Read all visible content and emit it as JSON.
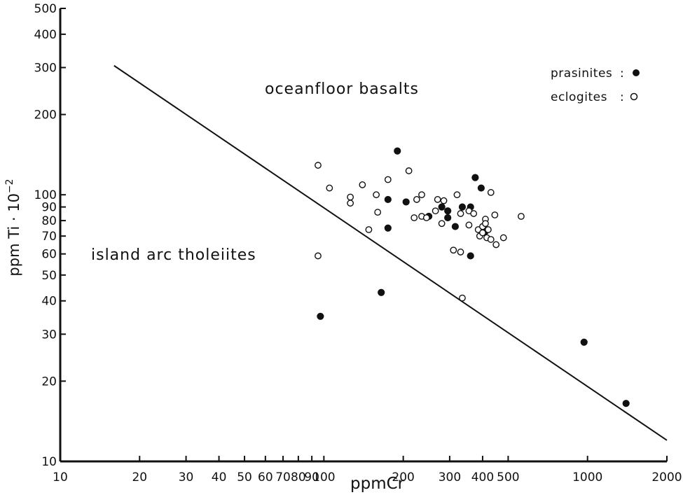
{
  "chart_data": {
    "type": "scatter",
    "x_scale": "log",
    "y_scale": "log",
    "xlim": [
      10,
      2000
    ],
    "ylim": [
      10,
      500
    ],
    "xlabel": "ppmCr",
    "ylabel": "ppm Ti · 10",
    "ylabel_exponent": "−2",
    "x_ticks": [
      10,
      20,
      30,
      40,
      50,
      60,
      70,
      80,
      90,
      100,
      200,
      300,
      400,
      500,
      1000,
      2000
    ],
    "x_tick_labels": [
      "10",
      "20",
      "30",
      "40",
      "50",
      "60",
      "70",
      "80",
      "90",
      "100",
      "200",
      "300",
      "400",
      "500",
      "1000",
      "2000"
    ],
    "y_ticks": [
      10,
      20,
      30,
      40,
      50,
      60,
      70,
      80,
      90,
      100,
      200,
      300,
      400,
      500
    ],
    "y_tick_labels": [
      "10",
      "20",
      "30",
      "40",
      "50",
      "60",
      "70",
      "80",
      "90",
      "100",
      "200",
      "300",
      "400",
      "500"
    ],
    "grid": false,
    "discriminant_line": [
      [
        16,
        305
      ],
      [
        2000,
        12
      ]
    ],
    "region_labels": {
      "upper": "oceanfloor basalts",
      "lower": "island arc tholeiites"
    },
    "legend": {
      "position": "top-right",
      "entries": [
        {
          "label": "prasinites",
          "separator": ":",
          "marker": "filled"
        },
        {
          "label": "eclogites",
          "separator": ":",
          "marker": "open"
        }
      ]
    },
    "series": [
      {
        "name": "prasinites",
        "marker": "filled",
        "points": [
          [
            97,
            35
          ],
          [
            165,
            43
          ],
          [
            190,
            146
          ],
          [
            175,
            96
          ],
          [
            175,
            75
          ],
          [
            205,
            94
          ],
          [
            250,
            83
          ],
          [
            280,
            90
          ],
          [
            295,
            87
          ],
          [
            295,
            82
          ],
          [
            315,
            76
          ],
          [
            335,
            90
          ],
          [
            360,
            90
          ],
          [
            360,
            59
          ],
          [
            375,
            116
          ],
          [
            395,
            106
          ],
          [
            410,
            73
          ],
          [
            970,
            28
          ],
          [
            1400,
            16.5
          ]
        ]
      },
      {
        "name": "eclogites",
        "marker": "open",
        "points": [
          [
            95,
            129
          ],
          [
            95,
            59
          ],
          [
            105,
            106
          ],
          [
            126,
            98
          ],
          [
            126,
            93
          ],
          [
            140,
            109
          ],
          [
            148,
            74
          ],
          [
            158,
            100
          ],
          [
            160,
            86
          ],
          [
            175,
            114
          ],
          [
            210,
            123
          ],
          [
            220,
            82
          ],
          [
            225,
            96
          ],
          [
            235,
            100
          ],
          [
            235,
            83
          ],
          [
            245,
            82
          ],
          [
            265,
            87
          ],
          [
            270,
            96
          ],
          [
            280,
            78
          ],
          [
            285,
            95
          ],
          [
            310,
            62
          ],
          [
            320,
            100
          ],
          [
            330,
            85
          ],
          [
            330,
            61
          ],
          [
            335,
            41
          ],
          [
            355,
            87
          ],
          [
            355,
            77
          ],
          [
            370,
            85
          ],
          [
            385,
            74
          ],
          [
            390,
            70
          ],
          [
            400,
            76
          ],
          [
            400,
            72
          ],
          [
            410,
            81
          ],
          [
            410,
            78
          ],
          [
            415,
            69
          ],
          [
            420,
            74
          ],
          [
            430,
            68
          ],
          [
            430,
            102
          ],
          [
            445,
            84
          ],
          [
            450,
            65
          ],
          [
            480,
            69
          ],
          [
            560,
            83
          ]
        ]
      }
    ]
  }
}
